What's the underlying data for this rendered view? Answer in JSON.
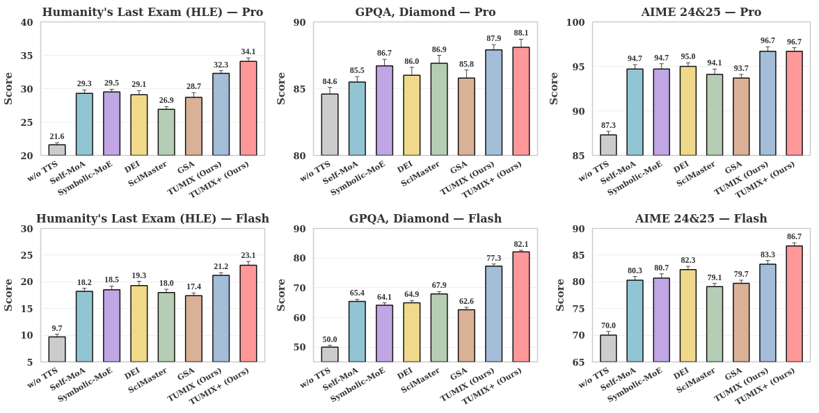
{
  "chart_data": [
    {
      "type": "bar",
      "title": "Humanity's Last Exam (HLE) — Pro",
      "ylabel": "Score",
      "categories": [
        "w/o TTS",
        "Self-MoA",
        "Symbolic-MoE",
        "DEI",
        "SciMaster",
        "GSA",
        "TUMIX (Ours)",
        "TUMIX+ (Ours)"
      ],
      "values": [
        21.6,
        29.3,
        29.5,
        29.1,
        26.9,
        28.7,
        32.3,
        34.1
      ],
      "value_labels": [
        "21.6",
        "29.3",
        "29.5",
        "29.1",
        "26.9",
        "28.7",
        "32.3",
        "34.1"
      ],
      "errors": [
        0.3,
        0.5,
        0.4,
        0.6,
        0.4,
        0.7,
        0.4,
        0.5
      ],
      "colors": [
        "#cccccc",
        "#92c5d4",
        "#c0a6e4",
        "#f1d98b",
        "#b5cdb4",
        "#d9b196",
        "#a4bdd8",
        "#ff9898"
      ],
      "ylim": [
        20,
        40
      ],
      "yticks": [
        20,
        25,
        30,
        35,
        40
      ],
      "grid": "y"
    },
    {
      "type": "bar",
      "title": "GPQA, Diamond — Pro",
      "ylabel": "Score",
      "categories": [
        "w/o TTS",
        "Self-MoA",
        "Symbolic-MoE",
        "DEI",
        "SciMaster",
        "GSA",
        "TUMIX (Ours)",
        "TUMIX+ (Ours)"
      ],
      "values": [
        84.6,
        85.5,
        86.7,
        86.0,
        86.9,
        85.8,
        87.9,
        88.1
      ],
      "value_labels": [
        "84.6",
        "85.5",
        "86.7",
        "86.0",
        "86.9",
        "85.8",
        "87.9",
        "88.1"
      ],
      "errors": [
        0.5,
        0.4,
        0.5,
        0.6,
        0.6,
        0.6,
        0.4,
        0.6
      ],
      "colors": [
        "#cccccc",
        "#92c5d4",
        "#c0a6e4",
        "#f1d98b",
        "#b5cdb4",
        "#d9b196",
        "#a4bdd8",
        "#ff9898"
      ],
      "ylim": [
        80,
        90
      ],
      "yticks": [
        80,
        85,
        90
      ],
      "grid": "y"
    },
    {
      "type": "bar",
      "title": "AIME 24&25 — Pro",
      "ylabel": "Score",
      "categories": [
        "w/o TTS",
        "Self-MoA",
        "Symbolic-MoE",
        "DEI",
        "SciMaster",
        "GSA",
        "TUMIX (Ours)",
        "TUMIX+ (Ours)"
      ],
      "values": [
        87.3,
        94.7,
        94.7,
        95.0,
        94.1,
        93.7,
        96.7,
        96.7
      ],
      "value_labels": [
        "87.3",
        "94.7",
        "94.7",
        "95.0",
        "94.1",
        "93.7",
        "96.7",
        "96.7"
      ],
      "errors": [
        0.4,
        0.5,
        0.6,
        0.4,
        0.6,
        0.4,
        0.5,
        0.4
      ],
      "colors": [
        "#cccccc",
        "#92c5d4",
        "#c0a6e4",
        "#f1d98b",
        "#b5cdb4",
        "#d9b196",
        "#a4bdd8",
        "#ff9898"
      ],
      "ylim": [
        85,
        100
      ],
      "yticks": [
        85,
        90,
        95,
        100
      ],
      "grid": "y"
    },
    {
      "type": "bar",
      "title": "Humanity's Last Exam (HLE) — Flash",
      "ylabel": "Score",
      "categories": [
        "w/o TTS",
        "Self-MoA",
        "Symbolic-MoE",
        "DEI",
        "SciMaster",
        "GSA",
        "TUMIX (Ours)",
        "TUMIX+ (Ours)"
      ],
      "values": [
        9.7,
        18.2,
        18.5,
        19.3,
        18.0,
        17.4,
        21.2,
        23.1
      ],
      "value_labels": [
        "9.7",
        "18.2",
        "18.5",
        "19.3",
        "18.0",
        "17.4",
        "21.2",
        "23.1"
      ],
      "errors": [
        0.5,
        0.6,
        0.7,
        0.8,
        0.6,
        0.5,
        0.5,
        0.7
      ],
      "colors": [
        "#cccccc",
        "#92c5d4",
        "#c0a6e4",
        "#f1d98b",
        "#b5cdb4",
        "#d9b196",
        "#a4bdd8",
        "#ff9898"
      ],
      "ylim": [
        5,
        30
      ],
      "yticks": [
        5,
        10,
        15,
        20,
        25,
        30
      ],
      "grid": "y"
    },
    {
      "type": "bar",
      "title": "GPQA, Diamond — Flash",
      "ylabel": "Score",
      "categories": [
        "w/o TTS",
        "Self-MoA",
        "Symbolic-MoE",
        "DEI",
        "SciMaster",
        "GSA",
        "TUMIX (Ours)",
        "TUMIX+ (Ours)"
      ],
      "values": [
        50.0,
        65.4,
        64.1,
        64.9,
        67.9,
        62.6,
        77.3,
        82.1
      ],
      "value_labels": [
        "50.0",
        "65.4",
        "64.1",
        "64.9",
        "67.9",
        "62.6",
        "77.3",
        "82.1"
      ],
      "errors": [
        0.6,
        0.7,
        0.8,
        0.8,
        0.8,
        0.8,
        0.7,
        0.5
      ],
      "colors": [
        "#cccccc",
        "#92c5d4",
        "#c0a6e4",
        "#f1d98b",
        "#b5cdb4",
        "#d9b196",
        "#a4bdd8",
        "#ff9898"
      ],
      "ylim": [
        45,
        90
      ],
      "yticks": [
        50,
        60,
        70,
        80,
        90
      ],
      "grid": "y"
    },
    {
      "type": "bar",
      "title": "AIME 24&25 — Flash",
      "ylabel": "Score",
      "categories": [
        "w/o TTS",
        "Self-MoA",
        "Symbolic-MoE",
        "DEI",
        "SciMaster",
        "GSA",
        "TUMIX (Ours)",
        "TUMIX+ (Ours)"
      ],
      "values": [
        70.0,
        80.3,
        80.7,
        82.3,
        79.1,
        79.7,
        83.3,
        86.7
      ],
      "value_labels": [
        "70.0",
        "80.3",
        "80.7",
        "82.3",
        "79.1",
        "79.7",
        "83.3",
        "86.7"
      ],
      "errors": [
        0.7,
        0.7,
        0.8,
        0.6,
        0.6,
        0.6,
        0.7,
        0.6
      ],
      "colors": [
        "#cccccc",
        "#92c5d4",
        "#c0a6e4",
        "#f1d98b",
        "#b5cdb4",
        "#d9b196",
        "#a4bdd8",
        "#ff9898"
      ],
      "ylim": [
        65,
        90
      ],
      "yticks": [
        65,
        70,
        75,
        80,
        85,
        90
      ],
      "grid": "y"
    }
  ]
}
